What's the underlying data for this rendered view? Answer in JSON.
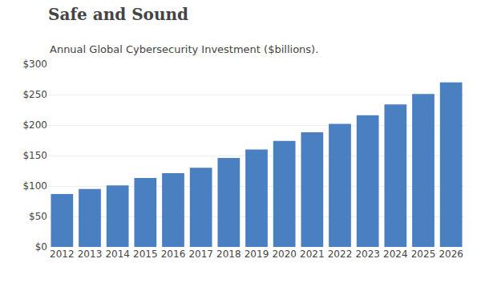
{
  "chart_data": {
    "type": "bar",
    "title": "Safe and Sound",
    "subtitle": "Annual Global Cybersecurity Investment ($billions).",
    "categories": [
      "2012",
      "2013",
      "2014",
      "2015",
      "2016",
      "2017",
      "2018",
      "2019",
      "2020",
      "2021",
      "2022",
      "2023",
      "2024",
      "2025",
      "2026"
    ],
    "values": [
      87,
      95,
      101,
      113,
      121,
      130,
      146,
      160,
      174,
      188,
      202,
      216,
      234,
      251,
      270
    ],
    "color": "#4a7fc1",
    "ylim": [
      0,
      300
    ],
    "yticks": [
      {
        "value": 0,
        "label": "$0"
      },
      {
        "value": 50,
        "label": "$50"
      },
      {
        "value": 100,
        "label": "$100"
      },
      {
        "value": 150,
        "label": "$150"
      },
      {
        "value": 200,
        "label": "$200"
      },
      {
        "value": 250,
        "label": "$250"
      },
      {
        "value": 300,
        "label": "$300"
      }
    ],
    "grid": true
  }
}
